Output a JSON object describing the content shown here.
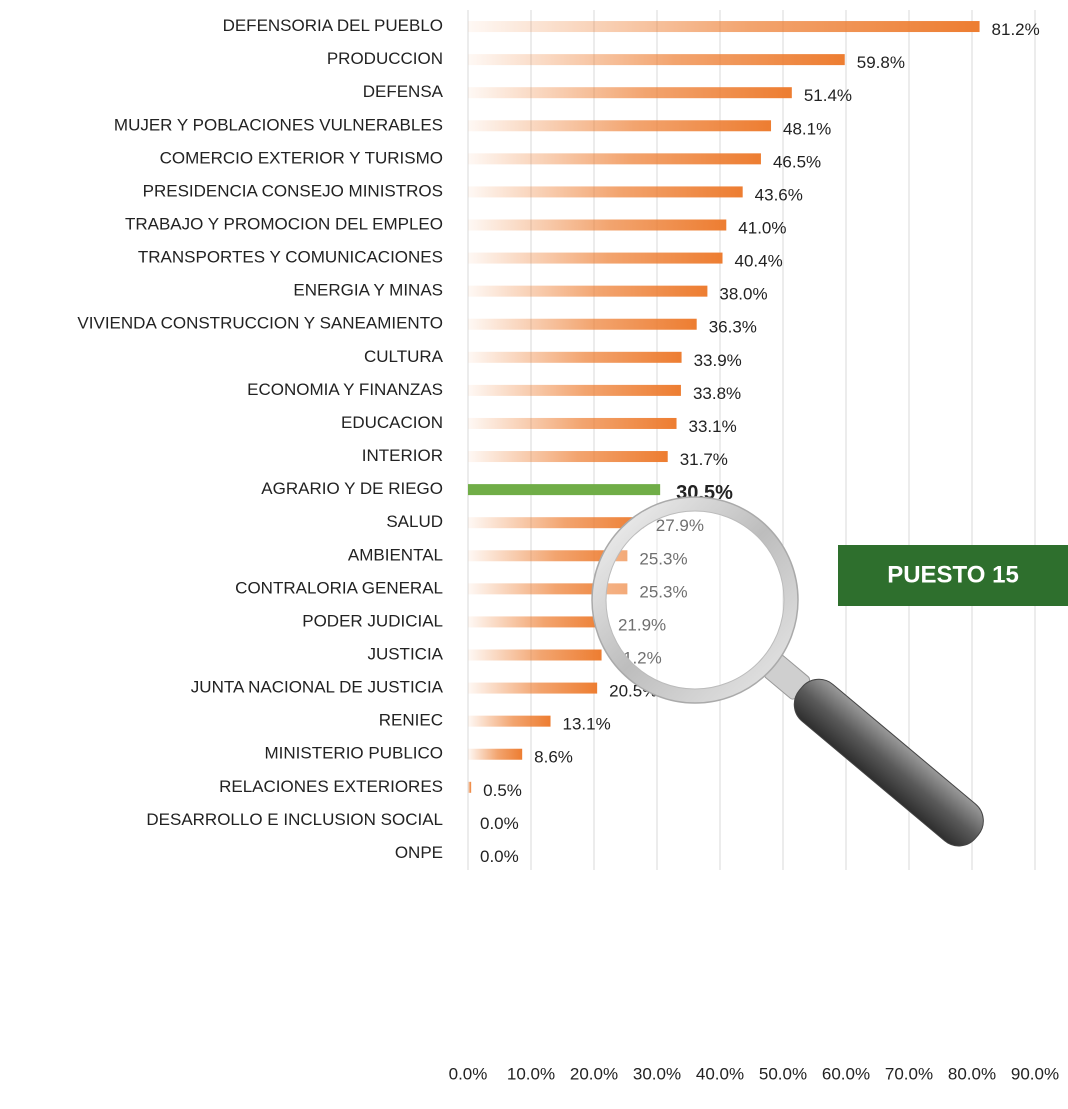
{
  "chart_data": {
    "type": "bar",
    "orientation": "horizontal",
    "categories": [
      "DEFENSORIA DEL PUEBLO",
      "PRODUCCION",
      "DEFENSA",
      "MUJER Y POBLACIONES VULNERABLES",
      "COMERCIO EXTERIOR Y TURISMO",
      "PRESIDENCIA CONSEJO MINISTROS",
      "TRABAJO Y PROMOCION DEL EMPLEO",
      "TRANSPORTES Y COMUNICACIONES",
      "ENERGIA Y MINAS",
      "VIVIENDA CONSTRUCCION Y SANEAMIENTO",
      "CULTURA",
      "ECONOMIA Y FINANZAS",
      "EDUCACION",
      "INTERIOR",
      "AGRARIO Y DE RIEGO",
      "SALUD",
      "AMBIENTAL",
      "CONTRALORIA GENERAL",
      "PODER JUDICIAL",
      "JUSTICIA",
      "JUNTA NACIONAL DE JUSTICIA",
      "RENIEC",
      "MINISTERIO PUBLICO",
      "RELACIONES EXTERIORES",
      "DESARROLLO E INCLUSION SOCIAL",
      "ONPE"
    ],
    "values": [
      81.2,
      59.8,
      51.4,
      48.1,
      46.5,
      43.6,
      41.0,
      40.4,
      38.0,
      36.3,
      33.9,
      33.8,
      33.1,
      31.7,
      30.5,
      27.9,
      25.3,
      25.3,
      21.9,
      21.2,
      20.5,
      13.1,
      8.6,
      0.5,
      0.0,
      0.0
    ],
    "value_labels": [
      "81.2%",
      "59.8%",
      "51.4%",
      "48.1%",
      "46.5%",
      "43.6%",
      "41.0%",
      "40.4%",
      "38.0%",
      "36.3%",
      "33.9%",
      "33.8%",
      "33.1%",
      "31.7%",
      "30.5%",
      "27.9%",
      "25.3%",
      "25.3%",
      "21.9%",
      "21.2%",
      "20.5%",
      "13.1%",
      "8.6%",
      "0.5%",
      "0.0%",
      "0.0%"
    ],
    "color": "#ed7d31",
    "highlight": {
      "index": 14,
      "color": "#70ad47"
    },
    "xlim": [
      0,
      90
    ],
    "xticks": [
      {
        "value": 0,
        "label": "0.0%"
      },
      {
        "value": 10,
        "label": "10.0%"
      },
      {
        "value": 20,
        "label": "20.0%"
      },
      {
        "value": 30,
        "label": "30.0%"
      },
      {
        "value": 40,
        "label": "40.0%"
      },
      {
        "value": 50,
        "label": "50.0%"
      },
      {
        "value": 60,
        "label": "60.0%"
      },
      {
        "value": 70,
        "label": "70.0%"
      },
      {
        "value": 80,
        "label": "80.0%"
      },
      {
        "value": 90,
        "label": "90.0%"
      }
    ],
    "grid": true,
    "annotation": "PUESTO 15"
  }
}
